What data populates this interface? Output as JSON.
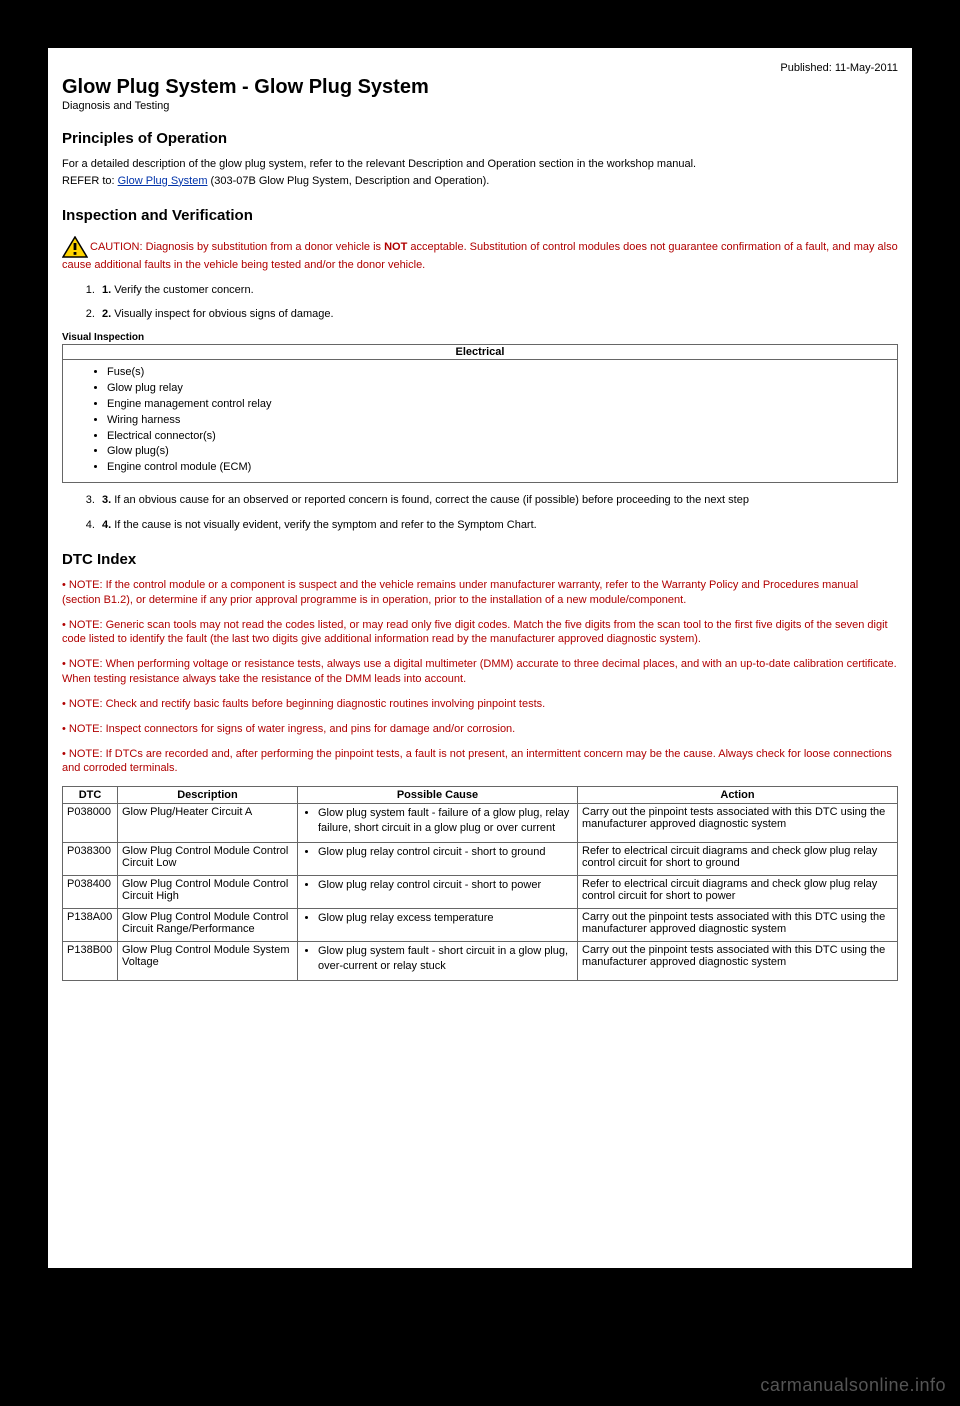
{
  "meta": {
    "published": "Published: 11-May-2011",
    "title": "Glow Plug System - Glow Plug System",
    "subtitle": "Diagnosis and Testing"
  },
  "principles": {
    "heading": "Principles of Operation",
    "para": "For a detailed description of the glow plug system, refer to the relevant Description and Operation section in the workshop manual.",
    "refer_prefix": "REFER to: ",
    "refer_link": "Glow Plug System",
    "refer_suffix": " (303-07B Glow Plug System, Description and Operation)."
  },
  "inspection": {
    "heading": "Inspection and Verification",
    "caution_label": "CAUTION: ",
    "caution_text_a": "Diagnosis by substitution from a donor vehicle is ",
    "caution_not": "NOT",
    "caution_text_b": " acceptable. Substitution of control modules does not guarantee confirmation of a fault, and may also cause additional faults in the vehicle being tested and/or the donor vehicle.",
    "step1_num": "1.",
    "step1": " Verify the customer concern.",
    "step2_num": "2.",
    "step2": " Visually inspect for obvious signs of damage.",
    "table_caption": "Visual Inspection",
    "table_header": "Electrical",
    "bullets": [
      "Fuse(s)",
      "Glow plug relay",
      "Engine management control relay",
      "Wiring harness",
      "Electrical connector(s)",
      "Glow plug(s)",
      "Engine control module (ECM)"
    ],
    "step3_num": "3.",
    "step3": " If an obvious cause for an observed or reported concern is found, correct the cause (if possible) before proceeding to the next step",
    "step4_num": "4.",
    "step4": " If the cause is not visually evident, verify the symptom and refer to the Symptom Chart."
  },
  "dtc": {
    "heading": "DTC Index",
    "notes": [
      "• NOTE: If the control module or a component is suspect and the vehicle remains under manufacturer warranty, refer to the Warranty Policy and Procedures manual (section B1.2), or determine if any prior approval programme is in operation, prior to the installation of a new module/component.",
      "• NOTE: Generic scan tools may not read the codes listed, or may read only five digit codes. Match the five digits from the scan tool to the first five digits of the seven digit code listed to identify the fault (the last two digits give additional information read by the manufacturer approved diagnostic system).",
      "• NOTE: When performing voltage or resistance tests, always use a digital multimeter (DMM) accurate to three decimal places, and with an up-to-date calibration certificate. When testing resistance always take the resistance of the DMM leads into account.",
      "• NOTE: Check and rectify basic faults before beginning diagnostic routines involving pinpoint tests.",
      "• NOTE: Inspect connectors for signs of water ingress, and pins for damage and/or corrosion.",
      "• NOTE: If DTCs are recorded and, after performing the pinpoint tests, a fault is not present, an intermittent concern may be the cause. Always check for loose connections and corroded terminals."
    ],
    "columns": [
      "DTC",
      "Description",
      "Possible Cause",
      "Action"
    ],
    "col_widths": [
      "55px",
      "180px",
      "280px",
      "auto"
    ],
    "rows": [
      {
        "dtc": "P038000",
        "desc": "Glow Plug/Heater Circuit A",
        "cause": "Glow plug system fault - failure of a glow plug, relay failure, short circuit in a glow plug or over current",
        "action": "Carry out the pinpoint tests associated with this DTC using the manufacturer approved diagnostic system"
      },
      {
        "dtc": "P038300",
        "desc": "Glow Plug Control Module Control Circuit Low",
        "cause": "Glow plug relay control circuit - short to ground",
        "action": "Refer to electrical circuit diagrams and check glow plug relay control circuit for short to ground"
      },
      {
        "dtc": "P038400",
        "desc": "Glow Plug Control Module Control Circuit High",
        "cause": "Glow plug relay control circuit - short to power",
        "action": "Refer to electrical circuit diagrams and check glow plug relay control circuit for short to power"
      },
      {
        "dtc": "P138A00",
        "desc": "Glow Plug Control Module Control Circuit Range/Performance",
        "cause": "Glow plug relay excess temperature",
        "action": "Carry out the pinpoint tests associated with this DTC using the manufacturer approved diagnostic system"
      },
      {
        "dtc": "P138B00",
        "desc": "Glow Plug Control Module System Voltage",
        "cause": "Glow plug system fault - short circuit in a glow plug, over-current or relay stuck",
        "action": "Carry out the pinpoint tests associated with this DTC using the manufacturer approved diagnostic system"
      }
    ]
  },
  "watermark": "carmanualsonline.info",
  "colors": {
    "page_bg": "#000000",
    "content_bg": "#ffffff",
    "text": "#000000",
    "link": "#0033aa",
    "warning": "#b00000",
    "border": "#666666",
    "watermark": "#7a7a7a",
    "caution_triangle_fill": "#ffd400",
    "caution_triangle_stroke": "#000000"
  }
}
